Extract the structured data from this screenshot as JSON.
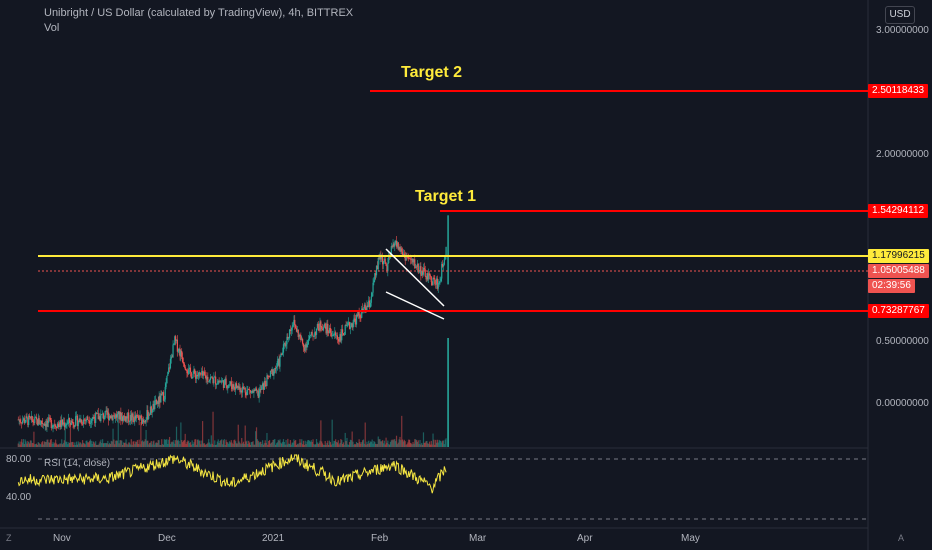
{
  "header": {
    "title": "Unibright / US Dollar (calculated by TradingView), 4h, BITTREX",
    "volume_label": "Vol",
    "currency": "USD"
  },
  "price_axis": {
    "ticks": [
      "3.00000000",
      "2.00000000",
      "0.50000000",
      "0.00000000"
    ],
    "tags": {
      "target2": "2.50118433",
      "target1": "1.54294112",
      "resistance": "1.17996215",
      "last": "1.05005488",
      "countdown": "02:39:56",
      "support": "0.73287767"
    }
  },
  "time_axis": {
    "labels": [
      "Nov",
      "Dec",
      "2021",
      "Feb",
      "Mar",
      "Apr",
      "May"
    ]
  },
  "annotations": {
    "target1": "Target 1",
    "target2": "Target 2"
  },
  "rsi": {
    "label": "RSI (14, close)",
    "ticks": [
      "80.00",
      "40.00"
    ]
  },
  "corners": {
    "left": "Z",
    "right": "A"
  },
  "colors": {
    "background": "#131722",
    "up": "#26a69a",
    "down": "#ef5350",
    "target_line": "#ff0000",
    "resistance_line": "#ffeb3b",
    "rsi_line": "#f5e642"
  },
  "chart_data": {
    "type": "candlestick",
    "symbol": "UBT/USD",
    "timeframe": "4h",
    "exchange": "BITTREX",
    "y_scale": "log",
    "horizontal_levels": [
      {
        "name": "Target 2",
        "value": 2.50118433
      },
      {
        "name": "Target 1",
        "value": 1.54294112
      },
      {
        "value": 1.17996215
      },
      {
        "value": 0.73287767
      }
    ],
    "last_price": 1.05005488,
    "price_path": [
      {
        "date": "2020-10-20",
        "close": 0.4
      },
      {
        "date": "2020-11-01",
        "close": 0.39
      },
      {
        "date": "2020-11-15",
        "close": 0.41
      },
      {
        "date": "2020-11-25",
        "close": 0.4
      },
      {
        "date": "2020-12-01",
        "close": 0.46
      },
      {
        "date": "2020-12-04",
        "close": 0.62
      },
      {
        "date": "2020-12-08",
        "close": 0.52
      },
      {
        "date": "2020-12-15",
        "close": 0.5
      },
      {
        "date": "2020-12-22",
        "close": 0.48
      },
      {
        "date": "2020-12-28",
        "close": 0.46
      },
      {
        "date": "2021-01-03",
        "close": 0.55
      },
      {
        "date": "2021-01-07",
        "close": 0.69
      },
      {
        "date": "2021-01-10",
        "close": 0.6
      },
      {
        "date": "2021-01-15",
        "close": 0.68
      },
      {
        "date": "2021-01-20",
        "close": 0.63
      },
      {
        "date": "2021-01-25",
        "close": 0.7
      },
      {
        "date": "2021-01-29",
        "close": 0.76
      },
      {
        "date": "2021-02-01",
        "close": 1.0
      },
      {
        "date": "2021-02-03",
        "close": 0.93
      },
      {
        "date": "2021-02-05",
        "close": 1.08
      },
      {
        "date": "2021-02-08",
        "close": 1.0
      },
      {
        "date": "2021-02-11",
        "close": 0.95
      },
      {
        "date": "2021-02-15",
        "close": 0.88
      },
      {
        "date": "2021-02-18",
        "close": 0.85
      },
      {
        "date": "2021-02-20",
        "close": 1.05
      }
    ],
    "rsi_path": [
      {
        "date": "2020-10-20",
        "value": 52
      },
      {
        "date": "2020-11-15",
        "value": 54
      },
      {
        "date": "2020-12-04",
        "value": 81
      },
      {
        "date": "2020-12-20",
        "value": 46
      },
      {
        "date": "2021-01-07",
        "value": 82
      },
      {
        "date": "2021-01-20",
        "value": 50
      },
      {
        "date": "2021-02-05",
        "value": 73
      },
      {
        "date": "2021-02-16",
        "value": 42
      },
      {
        "date": "2021-02-20",
        "value": 68
      }
    ],
    "pattern": "falling wedge"
  }
}
